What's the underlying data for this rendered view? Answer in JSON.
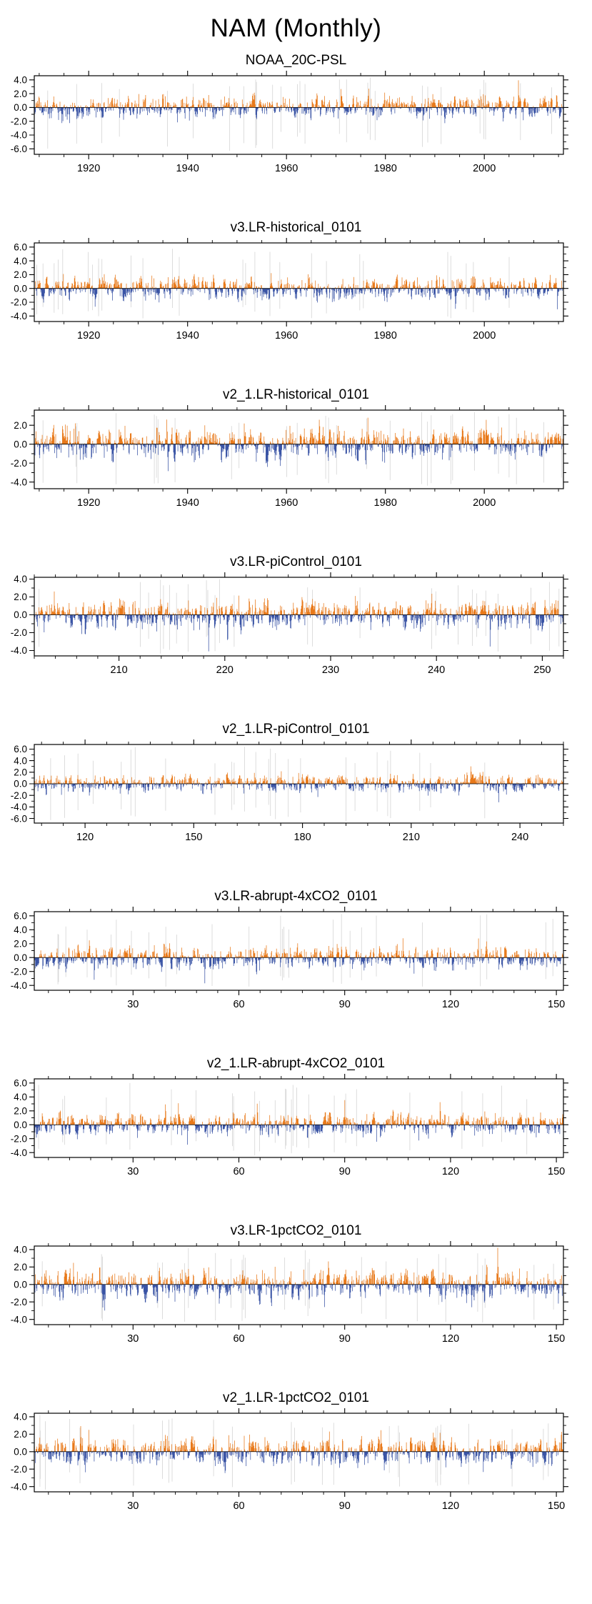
{
  "page_title": "NAM (Monthly)",
  "colors": {
    "positive": "#E8791A",
    "negative": "#3A54A5",
    "faint": "#D9D9D9",
    "axis": "#000000"
  },
  "chart_data": [
    {
      "type": "bar",
      "title": "NOAA_20C-PSL",
      "description": "Monthly NAM index anomalies; positive bars orange, negative bars blue; dense noise-like monthly series",
      "xlabel": "",
      "ylabel": "",
      "ylim": [
        -6.8,
        4.6
      ],
      "yticks": [
        4,
        2,
        0,
        -2,
        -4,
        -6
      ],
      "xlim": [
        1909,
        2016
      ],
      "xticks": [
        1920,
        1940,
        1960,
        1980,
        2000
      ],
      "x_minor_step": 5,
      "data_generation": {
        "n_points": 1100,
        "seed": 11,
        "ar1": 0.45,
        "sigma": 0.75,
        "spike_prob": 0.02,
        "spike_gain": 2.1,
        "faint_lines": 28
      }
    },
    {
      "type": "bar",
      "title": "v3.LR-historical_0101",
      "description": "Monthly NAM index anomalies; positive bars orange, negative bars blue",
      "xlabel": "",
      "ylabel": "",
      "ylim": [
        -4.8,
        6.6
      ],
      "yticks": [
        6,
        4,
        2,
        0,
        -2,
        -4
      ],
      "xlim": [
        1909,
        2016
      ],
      "xticks": [
        1920,
        1940,
        1960,
        1980,
        2000
      ],
      "x_minor_step": 5,
      "data_generation": {
        "n_points": 1100,
        "seed": 22,
        "ar1": 0.45,
        "sigma": 0.75,
        "spike_prob": 0.02,
        "spike_gain": 2.1,
        "faint_lines": 28
      }
    },
    {
      "type": "bar",
      "title": "v2_1.LR-historical_0101",
      "description": "Monthly NAM index anomalies; positive bars orange, negative bars blue",
      "xlabel": "",
      "ylabel": "",
      "ylim": [
        -4.7,
        3.6
      ],
      "yticks": [
        2,
        0,
        -2,
        -4
      ],
      "xlim": [
        1909,
        2016
      ],
      "xticks": [
        1920,
        1940,
        1960,
        1980,
        2000
      ],
      "x_minor_step": 5,
      "data_generation": {
        "n_points": 1100,
        "seed": 33,
        "ar1": 0.45,
        "sigma": 0.78,
        "spike_prob": 0.025,
        "spike_gain": 2.0,
        "faint_lines": 28
      }
    },
    {
      "type": "bar",
      "title": "v3.LR-piControl_0101",
      "description": "Monthly NAM index anomalies; positive bars orange, negative bars blue",
      "xlabel": "",
      "ylabel": "",
      "ylim": [
        -4.6,
        4.2
      ],
      "yticks": [
        4,
        2,
        0,
        -2,
        -4
      ],
      "xlim": [
        202,
        252
      ],
      "xticks": [
        210,
        220,
        230,
        240,
        250
      ],
      "x_minor_step": 2,
      "data_generation": {
        "n_points": 1100,
        "seed": 44,
        "ar1": 0.45,
        "sigma": 0.75,
        "spike_prob": 0.02,
        "spike_gain": 2.0,
        "faint_lines": 26
      }
    },
    {
      "type": "bar",
      "title": "v2_1.LR-piControl_0101",
      "description": "Monthly NAM index anomalies; positive bars orange, negative bars blue",
      "xlabel": "",
      "ylabel": "",
      "ylim": [
        -6.8,
        6.8
      ],
      "yticks": [
        6,
        4,
        2,
        0,
        -2,
        -4,
        -6
      ],
      "xlim": [
        106,
        252
      ],
      "xticks": [
        120,
        150,
        180,
        210,
        240
      ],
      "x_minor_step": 6,
      "data_generation": {
        "n_points": 1100,
        "seed": 55,
        "ar1": 0.45,
        "sigma": 0.72,
        "spike_prob": 0.018,
        "spike_gain": 2.2,
        "faint_lines": 26
      }
    },
    {
      "type": "bar",
      "title": "v3.LR-abrupt-4xCO2_0101",
      "description": "Monthly NAM index anomalies; positive bars orange, negative bars blue",
      "xlabel": "",
      "ylabel": "",
      "ylim": [
        -4.7,
        6.6
      ],
      "yticks": [
        6,
        4,
        2,
        0,
        -2,
        -4
      ],
      "xlim": [
        2,
        152
      ],
      "xticks": [
        30,
        60,
        90,
        120,
        150
      ],
      "x_minor_step": 6,
      "data_generation": {
        "n_points": 1100,
        "seed": 66,
        "ar1": 0.45,
        "sigma": 0.75,
        "spike_prob": 0.02,
        "spike_gain": 2.0,
        "faint_lines": 26
      }
    },
    {
      "type": "bar",
      "title": "v2_1.LR-abrupt-4xCO2_0101",
      "description": "Monthly NAM index anomalies; positive bars orange, negative bars blue",
      "xlabel": "",
      "ylabel": "",
      "ylim": [
        -4.7,
        6.6
      ],
      "yticks": [
        6,
        4,
        2,
        0,
        -2,
        -4
      ],
      "xlim": [
        2,
        152
      ],
      "xticks": [
        30,
        60,
        90,
        120,
        150
      ],
      "x_minor_step": 6,
      "data_generation": {
        "n_points": 1100,
        "seed": 77,
        "ar1": 0.45,
        "sigma": 0.75,
        "spike_prob": 0.02,
        "spike_gain": 2.0,
        "faint_lines": 26
      }
    },
    {
      "type": "bar",
      "title": "v3.LR-1pctCO2_0101",
      "description": "Monthly NAM index anomalies; positive bars orange, negative bars blue",
      "xlabel": "",
      "ylabel": "",
      "ylim": [
        -4.6,
        4.4
      ],
      "yticks": [
        4,
        2,
        0,
        -2,
        -4
      ],
      "xlim": [
        2,
        152
      ],
      "xticks": [
        30,
        60,
        90,
        120,
        150
      ],
      "x_minor_step": 6,
      "data_generation": {
        "n_points": 1100,
        "seed": 88,
        "ar1": 0.45,
        "sigma": 0.78,
        "spike_prob": 0.022,
        "spike_gain": 2.0,
        "faint_lines": 26
      }
    },
    {
      "type": "bar",
      "title": "v2_1.LR-1pctCO2_0101",
      "description": "Monthly NAM index anomalies; positive bars orange, negative bars blue",
      "xlabel": "",
      "ylabel": "",
      "ylim": [
        -4.6,
        4.4
      ],
      "yticks": [
        4,
        2,
        0,
        -2,
        -4
      ],
      "xlim": [
        2,
        152
      ],
      "xticks": [
        30,
        60,
        90,
        120,
        150
      ],
      "x_minor_step": 6,
      "data_generation": {
        "n_points": 1100,
        "seed": 99,
        "ar1": 0.45,
        "sigma": 0.75,
        "spike_prob": 0.02,
        "spike_gain": 2.0,
        "faint_lines": 26
      }
    }
  ]
}
